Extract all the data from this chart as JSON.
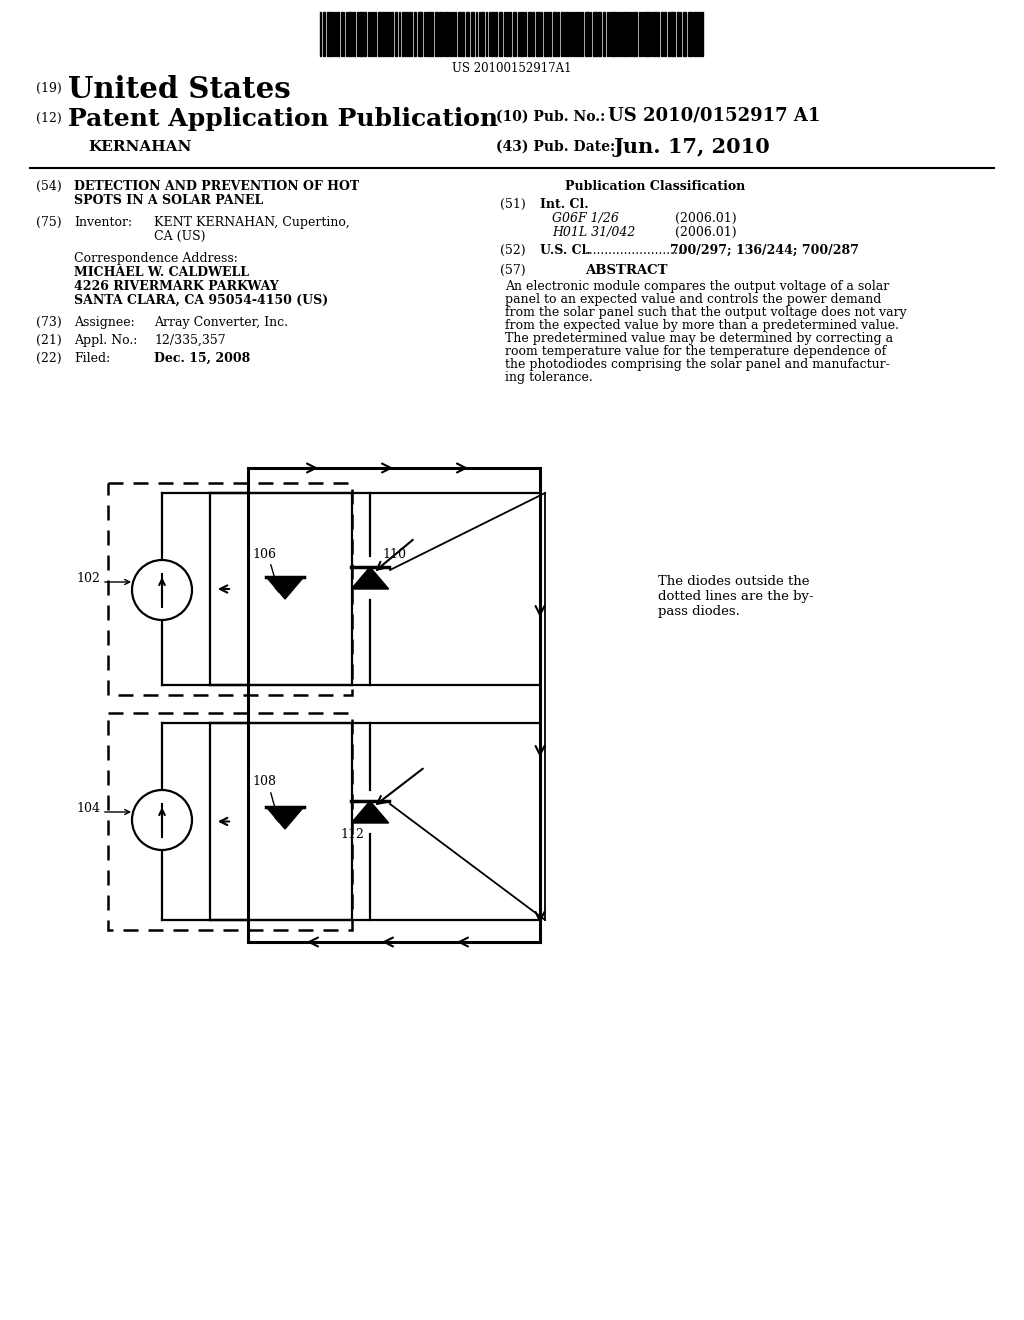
{
  "bg_color": "#ffffff",
  "barcode_text": "US 20100152917A1",
  "title_19_prefix": "(19)",
  "title_19_text": "United States",
  "title_12_prefix": "(12)",
  "title_12_text": "Patent Application Publication",
  "pub_no_label": "(10) Pub. No.:",
  "pub_no_value": "US 2010/0152917 A1",
  "pub_date_label": "(43) Pub. Date:",
  "pub_date_value": "Jun. 17, 2010",
  "inventor_name": "KERNAHAN",
  "field_54_label": "(54)",
  "field_54_text1": "DETECTION AND PREVENTION OF HOT",
  "field_54_text2": "SPOTS IN A SOLAR PANEL",
  "field_75_label": "(75)",
  "field_75_key": "Inventor:",
  "field_75_val1": "KENT KERNAHAN, Cupertino,",
  "field_75_val2": "CA (US)",
  "corr_label": "Correspondence Address:",
  "corr_name": "MICHAEL W. CALDWELL",
  "corr_addr1": "4226 RIVERMARK PARKWAY",
  "corr_addr2": "SANTA CLARA, CA 95054-4150 (US)",
  "field_73_label": "(73)",
  "field_73_key": "Assignee:",
  "field_73_value": "Array Converter, Inc.",
  "field_21_label": "(21)",
  "field_21_key": "Appl. No.:",
  "field_21_value": "12/335,357",
  "field_22_label": "(22)",
  "field_22_key": "Filed:",
  "field_22_value": "Dec. 15, 2008",
  "pub_class_title": "Publication Classification",
  "field_51_label": "(51)",
  "field_51_key": "Int. Cl.",
  "field_51_g06": "G06F 1/26",
  "field_51_g06_year": "(2006.01)",
  "field_51_h01": "H01L 31/042",
  "field_51_h01_year": "(2006.01)",
  "field_52_label": "(52)",
  "field_52_key": "U.S. Cl.",
  "field_52_dots": "...........................",
  "field_52_value": "700/297; 136/244; 700/287",
  "field_57_label": "(57)",
  "field_57_key": "ABSTRACT",
  "abstract_lines": [
    "An electronic module compares the output voltage of a solar",
    "panel to an expected value and controls the power demand",
    "from the solar panel such that the output voltage does not vary",
    "from the expected value by more than a predetermined value.",
    "The predetermined value may be determined by correcting a",
    "room temperature value for the temperature dependence of",
    "the photodiodes comprising the solar panel and manufactur-",
    "ing tolerance."
  ],
  "label_102": "102",
  "label_104": "104",
  "label_106": "106",
  "label_108": "108",
  "label_110": "110",
  "label_112": "112",
  "annot_line1": "The diodes outside the",
  "annot_line2": "dotted lines are the by-",
  "annot_line3": "pass diodes."
}
